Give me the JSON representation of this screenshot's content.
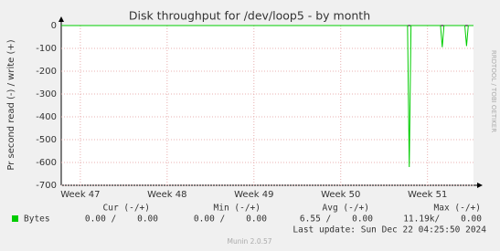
{
  "chart_data": {
    "type": "line",
    "title": "Disk throughput for /dev/loop5 - by month",
    "y_label": "Pr second read (-) / write (+)",
    "watermark": "RRDTOOL / TOBI OETIKER",
    "footer": "Munin 2.0.57",
    "last_update": "Last update: Sun Dec 22 04:25:50 2024",
    "xlim": [
      46.78,
      51.53
    ],
    "xticks": [
      {
        "value": 47,
        "label": "Week 47"
      },
      {
        "value": 48,
        "label": "Week 48"
      },
      {
        "value": 49,
        "label": "Week 49"
      },
      {
        "value": 50,
        "label": "Week 50"
      },
      {
        "value": 51,
        "label": "Week 51"
      }
    ],
    "ylim": [
      -700,
      0
    ],
    "yticks": [
      0,
      -100,
      -200,
      -300,
      -400,
      -500,
      -600,
      -700
    ],
    "grid": true,
    "series": [
      {
        "name": "Bytes",
        "color": "#00cc00",
        "x": [
          46.78,
          50.77,
          50.79,
          50.81,
          51.15,
          51.17,
          51.19,
          51.43,
          51.45,
          51.47,
          51.53
        ],
        "values": [
          0,
          0,
          -620,
          0,
          0,
          -95,
          0,
          0,
          -90,
          0,
          0
        ]
      }
    ],
    "legend_table": {
      "headers": [
        "Cur (-/+)",
        "Min (-/+)",
        "Avg (-/+)",
        "Max (-/+)"
      ],
      "rows": [
        [
          "0.00 /    0.00",
          "0.00 /    0.00",
          "6.55 /    0.00",
          "11.19k/    0.00"
        ]
      ]
    }
  }
}
